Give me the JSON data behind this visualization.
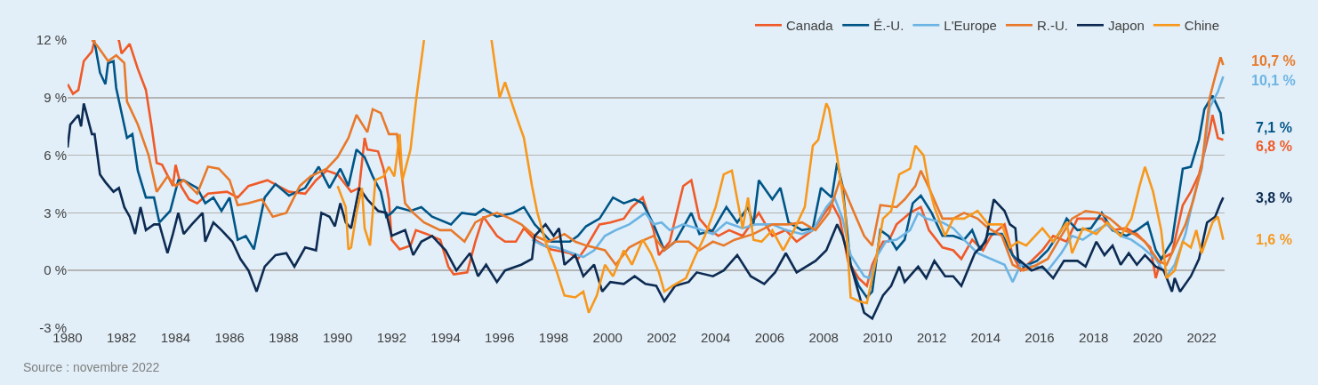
{
  "chart_data": {
    "type": "line",
    "xlim": [
      1980,
      2022.85
    ],
    "xticks": [
      1980,
      1982,
      1984,
      1986,
      1988,
      1990,
      1992,
      1994,
      1996,
      1998,
      2000,
      2002,
      2004,
      2006,
      2008,
      2010,
      2012,
      2014,
      2016,
      2018,
      2020,
      2022
    ],
    "ylim": [
      -3,
      12
    ],
    "yticks": [
      {
        "value": -3,
        "label": "-3 %"
      },
      {
        "value": 0,
        "label": "0 %"
      },
      {
        "value": 3,
        "label": "3 %"
      },
      {
        "value": 6,
        "label": "6 %"
      },
      {
        "value": 9,
        "label": "9 %"
      },
      {
        "value": 12,
        "label": "12 %"
      }
    ],
    "grid": "y",
    "legend": "top right",
    "series": [
      {
        "name": "Canada",
        "color": "#f05a28",
        "x": [
          1980.0,
          1980.2,
          1980.4,
          1980.6,
          1980.9,
          1981.0,
          1981.05,
          1981.85,
          1981.9,
          1982.0,
          1982.3,
          1982.6,
          1982.9,
          1983.1,
          1983.3,
          1983.5,
          1983.9,
          1984.0,
          1984.2,
          1984.5,
          1984.8,
          1985.2,
          1985.9,
          1986.3,
          1986.7,
          1987.4,
          1988.2,
          1988.8,
          1989.2,
          1989.6,
          1990.0,
          1990.5,
          1990.8,
          1991.0,
          1991.1,
          1991.5,
          1991.7,
          1991.9,
          1992.0,
          1992.3,
          1992.7,
          1992.9,
          1993.3,
          1993.8,
          1994.1,
          1994.3,
          1994.8,
          1995.1,
          1995.4,
          1995.9,
          1996.2,
          1996.6,
          1996.9,
          1997.3,
          1997.9,
          1998.6,
          1998.9,
          1999.2,
          1999.7,
          2000.1,
          2000.6,
          2000.9,
          2001.3,
          2001.7,
          2001.9,
          2002.3,
          2002.8,
          2003.1,
          2003.4,
          2003.7,
          2004.1,
          2004.5,
          2005.0,
          2005.6,
          2006.1,
          2006.6,
          2007.0,
          2007.6,
          2008.3,
          2008.6,
          2008.9,
          2009.3,
          2009.6,
          2009.8,
          2010.2,
          2010.4,
          2010.7,
          2011.2,
          2011.6,
          2011.9,
          2012.4,
          2012.8,
          2013.1,
          2013.5,
          2013.9,
          2014.2,
          2014.7,
          2015.0,
          2015.3,
          2015.7,
          2016.1,
          2016.5,
          2017.0,
          2017.4,
          2017.9,
          2018.3,
          2018.7,
          2019.2,
          2019.6,
          2020.1,
          2020.3,
          2020.5,
          2020.9,
          2021.3,
          2021.6,
          2021.9,
          2022.3,
          2022.4,
          2022.6,
          2022.8
        ],
        "values": [
          9.7,
          9.2,
          9.4,
          10.9,
          11.4,
          12,
          null,
          12,
          12,
          11.3,
          11.8,
          10.5,
          9.4,
          7.6,
          5.6,
          5.5,
          4.4,
          5.5,
          4.4,
          3.7,
          3.5,
          4.0,
          4.1,
          3.8,
          4.4,
          4.7,
          4.1,
          4.0,
          4.7,
          5.2,
          5.0,
          4.1,
          4.3,
          6.9,
          6.3,
          6.2,
          5.3,
          3.7,
          1.6,
          1.1,
          1.3,
          2.1,
          1.9,
          1.6,
          0.2,
          -0.2,
          -0.1,
          1.5,
          2.8,
          1.8,
          1.5,
          1.5,
          2.2,
          1.6,
          1.1,
          0.9,
          0.6,
          1.2,
          2.4,
          2.5,
          2.7,
          3.3,
          3.8,
          2.1,
          0.8,
          1.5,
          4.4,
          4.7,
          2.7,
          2.2,
          1.8,
          2.1,
          1.8,
          3.0,
          1.8,
          2.1,
          1.5,
          2.1,
          3.5,
          2.7,
          0.5,
          -0.4,
          -0.8,
          0.3,
          1.5,
          1.5,
          2.4,
          3.0,
          3.3,
          2.1,
          1.2,
          1.05,
          0.6,
          1.6,
          1.05,
          1.8,
          2.4,
          0.8,
          0.0,
          0.5,
          1.05,
          1.8,
          1.5,
          2.7,
          2.7,
          2.7,
          2.1,
          2.2,
          1.9,
          1.2,
          -0.4,
          0.6,
          0.9,
          3.4,
          4.1,
          5.0,
          7.3,
          8.1,
          6.9,
          6.8
        ]
      },
      {
        "name": "É.-U.",
        "color": "#005587",
        "x": [
          1981.0,
          1981.2,
          1981.4,
          1981.5,
          1981.7,
          1981.8,
          1982.2,
          1982.4,
          1982.6,
          1982.9,
          1983.2,
          1983.4,
          1983.8,
          1984.1,
          1984.3,
          1984.8,
          1985.1,
          1985.4,
          1985.7,
          1986.0,
          1986.3,
          1986.6,
          1986.9,
          1987.3,
          1987.7,
          1988.2,
          1988.8,
          1989.3,
          1989.7,
          1990.1,
          1990.4,
          1990.7,
          1991.0,
          1991.3,
          1991.6,
          1991.8,
          1992.0,
          1992.2,
          1992.7,
          1993.1,
          1993.5,
          1994.2,
          1994.6,
          1995.1,
          1995.4,
          1995.9,
          1996.5,
          1996.9,
          1997.3,
          1997.9,
          1998.6,
          1998.9,
          1999.2,
          1999.7,
          2000.2,
          2000.6,
          2001.0,
          2001.3,
          2001.7,
          2002.1,
          2002.5,
          2003.1,
          2003.4,
          2003.9,
          2004.4,
          2004.8,
          2005.2,
          2005.4,
          2005.6,
          2006.1,
          2006.4,
          2006.7,
          2007.2,
          2007.6,
          2007.9,
          2008.3,
          2008.5,
          2008.7,
          2009.0,
          2009.3,
          2009.6,
          2009.8,
          2010.1,
          2010.4,
          2010.7,
          2011.0,
          2011.3,
          2011.6,
          2012.0,
          2012.4,
          2012.8,
          2013.2,
          2013.5,
          2013.8,
          2014.1,
          2014.6,
          2015.0,
          2015.4,
          2015.9,
          2016.3,
          2016.8,
          2017.0,
          2017.4,
          2017.9,
          2018.3,
          2018.7,
          2019.2,
          2019.6,
          2020.0,
          2020.3,
          2020.5,
          2020.9,
          2021.3,
          2021.6,
          2021.9,
          2022.1,
          2022.4,
          2022.7,
          2022.8
        ],
        "values": [
          11.9,
          10.3,
          9.7,
          10.8,
          10.9,
          9.5,
          6.9,
          7.1,
          5.2,
          3.8,
          3.8,
          2.5,
          3.1,
          4.7,
          4.7,
          4.3,
          3.5,
          3.8,
          3.1,
          3.8,
          1.6,
          1.8,
          1.1,
          3.8,
          4.5,
          3.9,
          4.3,
          5.4,
          4.3,
          5.3,
          4.4,
          6.3,
          5.9,
          4.9,
          4.1,
          2.8,
          3.0,
          3.3,
          3.1,
          3.3,
          2.8,
          2.4,
          3.0,
          2.9,
          3.2,
          2.8,
          3.0,
          3.3,
          2.4,
          1.5,
          1.5,
          1.8,
          2.3,
          2.7,
          3.8,
          3.5,
          3.7,
          3.5,
          2.4,
          1.05,
          1.5,
          3.0,
          1.9,
          2.1,
          3.3,
          2.5,
          3.3,
          2.4,
          4.7,
          3.7,
          4.3,
          2.5,
          2.1,
          2.2,
          4.3,
          3.8,
          5.6,
          4.4,
          0.3,
          -0.8,
          -1.4,
          -1.1,
          2.1,
          1.8,
          1.1,
          1.6,
          3.5,
          3.9,
          3.0,
          1.8,
          1.8,
          1.6,
          2.1,
          1.05,
          1.9,
          1.9,
          0.8,
          0.2,
          0.5,
          1.05,
          2.1,
          2.7,
          2.1,
          2.2,
          3.0,
          2.1,
          1.8,
          2.1,
          2.5,
          1.05,
          0.6,
          1.5,
          5.3,
          5.4,
          6.8,
          8.4,
          9.1,
          8.2,
          7.1
        ]
      },
      {
        "name": "L'Europe",
        "color": "#6cb4e4",
        "x": [
          1997.2,
          1997.6,
          1998.1,
          1998.7,
          1999.1,
          1999.5,
          1999.9,
          2000.3,
          2000.8,
          2001.1,
          2001.4,
          2001.7,
          2002.0,
          2002.3,
          2002.8,
          2003.3,
          2003.9,
          2004.4,
          2005.0,
          2005.5,
          2006.1,
          2006.6,
          2007.2,
          2007.6,
          2008.1,
          2008.4,
          2008.7,
          2009.0,
          2009.5,
          2009.7,
          2010.0,
          2010.3,
          2010.7,
          2011.2,
          2011.5,
          2011.8,
          2012.4,
          2012.8,
          2013.2,
          2013.7,
          2014.2,
          2014.7,
          2015.0,
          2015.3,
          2015.9,
          2016.3,
          2016.8,
          2017.2,
          2017.6,
          2018.1,
          2018.5,
          2019.0,
          2019.4,
          2019.8,
          2020.3,
          2020.7,
          2021.0,
          2021.4,
          2021.7,
          2022.0,
          2022.3,
          2022.6,
          2022.8
        ],
        "values": [
          1.6,
          1.3,
          1.2,
          0.9,
          0.7,
          1.05,
          1.8,
          2.1,
          2.4,
          2.7,
          3.0,
          2.4,
          2.5,
          2.1,
          2.4,
          2.2,
          1.9,
          2.5,
          2.2,
          2.4,
          2.4,
          2.1,
          1.9,
          2.1,
          3.3,
          3.8,
          2.7,
          0.8,
          -0.3,
          -0.4,
          0.8,
          1.5,
          1.6,
          2.1,
          3.0,
          2.7,
          2.5,
          2.2,
          1.6,
          0.9,
          0.6,
          0.3,
          -0.6,
          0.3,
          0.2,
          0.0,
          0.9,
          1.8,
          1.6,
          2.1,
          2.4,
          1.8,
          1.6,
          1.2,
          0.6,
          -0.3,
          0.3,
          1.9,
          3.8,
          5.3,
          8.5,
          9.3,
          10.1
        ]
      },
      {
        "name": "R.-U.",
        "color": "#e8792a",
        "x": [
          1980.9,
          1981.1,
          1981.5,
          1981.8,
          1982.1,
          1982.2,
          1982.6,
          1983.0,
          1983.3,
          1983.7,
          1984.0,
          1984.3,
          1984.8,
          1985.2,
          1985.6,
          1986.0,
          1986.3,
          1986.7,
          1987.2,
          1987.6,
          1988.1,
          1988.6,
          1989.0,
          1989.6,
          1990.0,
          1990.4,
          1990.7,
          1991.1,
          1991.3,
          1991.6,
          1991.9,
          1992.2,
          1992.5,
          1992.8,
          1993.2,
          1993.8,
          1994.2,
          1994.7,
          1995.1,
          1995.5,
          1995.9,
          1996.4,
          1996.8,
          1997.3,
          1997.8,
          1998.4,
          1998.8,
          1999.2,
          1999.9,
          2000.3,
          2000.8,
          2001.2,
          2001.7,
          2002.1,
          2002.5,
          2003.0,
          2003.4,
          2003.9,
          2004.3,
          2004.7,
          2005.4,
          2006.1,
          2006.7,
          2007.2,
          2007.7,
          2008.2,
          2008.6,
          2008.8,
          2009.1,
          2009.5,
          2009.8,
          2010.1,
          2010.7,
          2011.0,
          2011.4,
          2011.6,
          2011.9,
          2012.4,
          2012.8,
          2013.2,
          2013.7,
          2014.1,
          2014.6,
          2015.0,
          2015.4,
          2015.9,
          2016.3,
          2016.8,
          2017.2,
          2017.7,
          2018.2,
          2018.6,
          2019.1,
          2019.5,
          2019.9,
          2020.4,
          2020.7,
          2021.0,
          2021.4,
          2021.7,
          2022.0,
          2022.3,
          2022.5,
          2022.7,
          2022.8
        ],
        "values": [
          12,
          11.7,
          10.9,
          11.2,
          10.8,
          8.8,
          7.6,
          6.0,
          4.1,
          4.9,
          4.4,
          4.7,
          4.0,
          5.4,
          5.3,
          4.7,
          3.4,
          3.5,
          3.7,
          2.8,
          3.0,
          4.4,
          4.9,
          5.3,
          5.9,
          6.9,
          8.1,
          7.2,
          8.4,
          8.2,
          7.1,
          7.1,
          3.5,
          3.0,
          2.5,
          2.1,
          2.1,
          1.5,
          2.5,
          2.8,
          3.0,
          2.7,
          2.4,
          1.8,
          1.5,
          1.9,
          1.5,
          1.3,
          1.05,
          0.3,
          1.2,
          1.5,
          1.8,
          1.05,
          1.5,
          1.5,
          1.05,
          1.5,
          1.3,
          1.6,
          1.9,
          2.4,
          2.4,
          2.5,
          2.1,
          3.0,
          4.7,
          4.1,
          3.1,
          1.8,
          1.3,
          3.4,
          3.3,
          3.7,
          4.4,
          5.2,
          4.3,
          2.7,
          2.7,
          3.0,
          2.7,
          2.2,
          1.8,
          0.3,
          0.0,
          0.3,
          0.6,
          1.8,
          2.7,
          3.1,
          3.0,
          2.7,
          2.1,
          1.9,
          1.5,
          0.5,
          0.3,
          1.2,
          2.4,
          3.7,
          5.4,
          9.0,
          10.1,
          11.1,
          10.7
        ]
      },
      {
        "name": "Japon",
        "color": "#0d2b52",
        "x": [
          1980.0,
          1980.1,
          1980.4,
          1980.5,
          1980.6,
          1980.9,
          1981.0,
          1981.2,
          1981.4,
          1981.7,
          1981.9,
          1982.1,
          1982.3,
          1982.5,
          1982.7,
          1982.9,
          1983.2,
          1983.4,
          1983.7,
          1983.9,
          1984.1,
          1984.3,
          1984.6,
          1985.0,
          1985.1,
          1985.4,
          1985.7,
          1986.1,
          1986.4,
          1986.7,
          1987.0,
          1987.3,
          1987.7,
          1988.1,
          1988.4,
          1988.8,
          1989.2,
          1989.4,
          1989.7,
          1989.9,
          1990.1,
          1990.3,
          1990.5,
          1990.8,
          1991.1,
          1991.5,
          1991.8,
          1992.0,
          1992.5,
          1992.8,
          1993.1,
          1993.5,
          1994.0,
          1994.4,
          1994.9,
          1995.2,
          1995.5,
          1995.9,
          1996.2,
          1996.8,
          1997.2,
          1997.3,
          1997.7,
          1998.0,
          1998.2,
          1998.4,
          1998.8,
          1999.1,
          1999.5,
          1999.8,
          2000.1,
          2000.6,
          2001.0,
          2001.4,
          2001.8,
          2002.1,
          2002.5,
          2003.0,
          2003.3,
          2003.9,
          2004.3,
          2004.8,
          2005.3,
          2005.8,
          2006.2,
          2006.6,
          2007.0,
          2007.7,
          2008.1,
          2008.5,
          2008.7,
          2009.0,
          2009.5,
          2009.8,
          2010.2,
          2010.5,
          2010.8,
          2011.0,
          2011.5,
          2011.8,
          2012.1,
          2012.5,
          2012.8,
          2013.1,
          2013.6,
          2014.0,
          2014.3,
          2014.7,
          2014.9,
          2015.1,
          2015.2,
          2015.7,
          2016.1,
          2016.5,
          2016.9,
          2017.4,
          2017.7,
          2018.1,
          2018.4,
          2018.7,
          2019.0,
          2019.3,
          2019.6,
          2019.9,
          2020.3,
          2020.6,
          2020.9,
          2021.0,
          2021.2,
          2021.6,
          2021.9,
          2022.2,
          2022.5,
          2022.7,
          2022.8
        ],
        "values": [
          6.4,
          7.6,
          8.1,
          7.5,
          8.7,
          7.1,
          7.1,
          5.0,
          4.6,
          4.1,
          4.3,
          3.3,
          2.8,
          1.9,
          3.3,
          2.1,
          2.4,
          2.4,
          0.9,
          1.9,
          3.0,
          1.9,
          2.4,
          3.0,
          1.5,
          2.5,
          2.1,
          1.5,
          0.6,
          0.0,
          -1.1,
          0.2,
          0.8,
          0.9,
          0.2,
          1.2,
          1.05,
          3.0,
          2.8,
          2.3,
          3.5,
          2.5,
          2.2,
          4.3,
          3.7,
          3.1,
          3.0,
          1.8,
          2.1,
          0.8,
          1.5,
          1.8,
          1.05,
          0.0,
          0.9,
          -0.3,
          0.3,
          -0.6,
          0.0,
          0.3,
          0.6,
          1.8,
          2.4,
          1.8,
          2.2,
          0.3,
          0.8,
          -0.3,
          0.3,
          -1.1,
          -0.6,
          -0.7,
          -0.3,
          -0.7,
          -0.8,
          -1.6,
          -0.8,
          -0.6,
          -0.1,
          -0.3,
          0.0,
          0.8,
          -0.3,
          -0.7,
          -0.1,
          0.9,
          -0.1,
          0.5,
          1.05,
          2.4,
          1.8,
          0.3,
          -2.2,
          -2.5,
          -1.3,
          -0.8,
          0.2,
          -0.6,
          0.2,
          -0.4,
          0.5,
          -0.3,
          -0.3,
          -0.8,
          0.9,
          1.5,
          3.7,
          3.1,
          2.4,
          2.2,
          0.6,
          0.0,
          0.2,
          -0.4,
          0.5,
          0.5,
          0.2,
          1.5,
          0.8,
          1.3,
          0.3,
          0.9,
          0.3,
          0.8,
          0.2,
          0.0,
          -1.1,
          -0.4,
          -1.1,
          -0.3,
          0.6,
          2.5,
          2.8,
          3.5,
          3.8
        ]
      },
      {
        "name": "Chine",
        "color": "#f7981d",
        "x": [
          1990.0,
          1990.3,
          1990.4,
          1990.5,
          1990.7,
          1990.9,
          1991.0,
          1991.2,
          1991.4,
          1991.7,
          1991.9,
          1992.1,
          1992.3,
          1992.4,
          1992.7,
          1992.9,
          1993.2,
          1993.25,
          1995.65,
          1995.7,
          1996.0,
          1996.2,
          1996.6,
          1996.9,
          1997.2,
          1997.4,
          1997.7,
          1998.1,
          1998.4,
          1998.8,
          1999.1,
          1999.3,
          1999.6,
          1999.9,
          2000.2,
          2000.6,
          2000.9,
          2001.3,
          2001.6,
          2001.9,
          2002.1,
          2002.4,
          2002.9,
          2003.2,
          2003.6,
          2004.0,
          2004.3,
          2004.6,
          2005.0,
          2005.2,
          2005.4,
          2005.7,
          2006.1,
          2006.5,
          2006.9,
          2007.3,
          2007.6,
          2007.8,
          2008.1,
          2008.2,
          2008.5,
          2008.8,
          2009.0,
          2009.3,
          2009.6,
          2009.9,
          2010.2,
          2010.5,
          2010.8,
          2011.2,
          2011.4,
          2011.7,
          2011.9,
          2012.1,
          2012.5,
          2012.8,
          2013.2,
          2013.7,
          2014.1,
          2014.6,
          2014.9,
          2015.2,
          2015.5,
          2016.1,
          2016.5,
          2017.0,
          2017.2,
          2017.6,
          2018.1,
          2018.5,
          2019.0,
          2019.4,
          2019.7,
          2019.9,
          2020.2,
          2020.5,
          2020.7,
          2021.0,
          2021.3,
          2021.6,
          2021.8,
          2022.0,
          2022.4,
          2022.6,
          2022.8
        ],
        "values": [
          4.4,
          3.3,
          1.1,
          1.2,
          3.0,
          4.3,
          2.2,
          1.3,
          4.7,
          4.9,
          5.4,
          4.9,
          7.1,
          4.7,
          6.3,
          8.8,
          12,
          null,
          null,
          12,
          9.0,
          9.8,
          8.1,
          6.9,
          4.4,
          3.0,
          1.5,
          0.0,
          -1.3,
          -1.4,
          -1.1,
          -2.2,
          -1.3,
          0.3,
          -0.3,
          1.05,
          0.3,
          1.6,
          0.9,
          -0.1,
          -1.1,
          -0.8,
          -0.4,
          0.6,
          1.8,
          3.3,
          5.0,
          5.2,
          2.2,
          3.8,
          1.6,
          1.5,
          2.1,
          1.05,
          2.1,
          3.3,
          6.5,
          6.8,
          8.7,
          8.4,
          5.9,
          3.0,
          -1.4,
          -1.6,
          -1.7,
          0.3,
          2.7,
          3.1,
          5.0,
          5.3,
          6.5,
          6.0,
          4.4,
          3.3,
          1.8,
          2.7,
          2.7,
          3.1,
          2.4,
          2.4,
          1.2,
          1.5,
          1.3,
          2.2,
          1.5,
          2.5,
          0.9,
          2.2,
          1.9,
          2.5,
          1.8,
          2.7,
          4.4,
          5.4,
          4.1,
          2.1,
          -0.4,
          0.0,
          1.5,
          1.2,
          2.1,
          0.9,
          2.5,
          2.8,
          1.6
        ]
      }
    ],
    "annotations": [
      "10,7 %",
      "10,1 %",
      "7,1 %",
      "6,8 %",
      "3,8 %",
      "1,6 %",
      "Source : novembre 2022"
    ]
  }
}
